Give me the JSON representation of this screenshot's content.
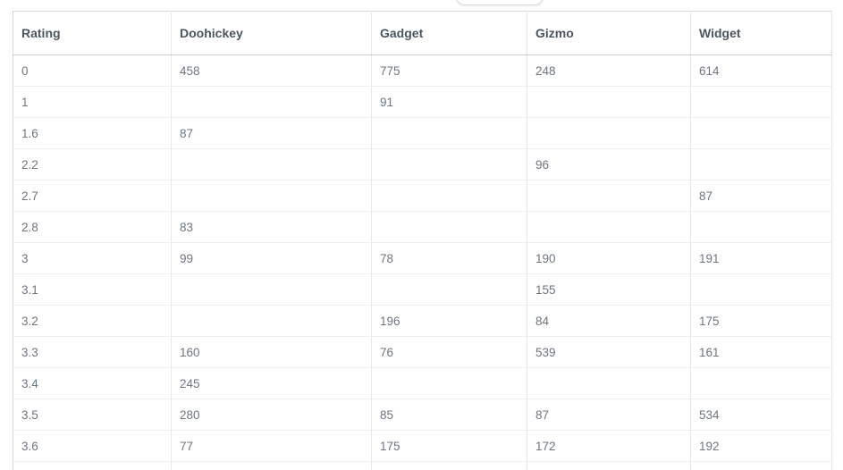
{
  "table": {
    "columns": [
      "Rating",
      "Doohickey",
      "Gadget",
      "Gizmo",
      "Widget"
    ],
    "rows": [
      [
        "0",
        "458",
        "775",
        "248",
        "614"
      ],
      [
        "1",
        "",
        "91",
        "",
        ""
      ],
      [
        "1.6",
        "87",
        "",
        "",
        ""
      ],
      [
        "2.2",
        "",
        "",
        "96",
        ""
      ],
      [
        "2.7",
        "",
        "",
        "",
        "87"
      ],
      [
        "2.8",
        "83",
        "",
        "",
        ""
      ],
      [
        "3",
        "99",
        "78",
        "190",
        "191"
      ],
      [
        "3.1",
        "",
        "",
        "155",
        ""
      ],
      [
        "3.2",
        "",
        "196",
        "84",
        "175"
      ],
      [
        "3.3",
        "160",
        "76",
        "539",
        "161"
      ],
      [
        "3.4",
        "245",
        "",
        "",
        ""
      ],
      [
        "3.5",
        "280",
        "85",
        "87",
        "534"
      ],
      [
        "3.6",
        "77",
        "175",
        "172",
        "192"
      ],
      [
        "",
        "",
        "",
        "",
        ""
      ]
    ]
  }
}
